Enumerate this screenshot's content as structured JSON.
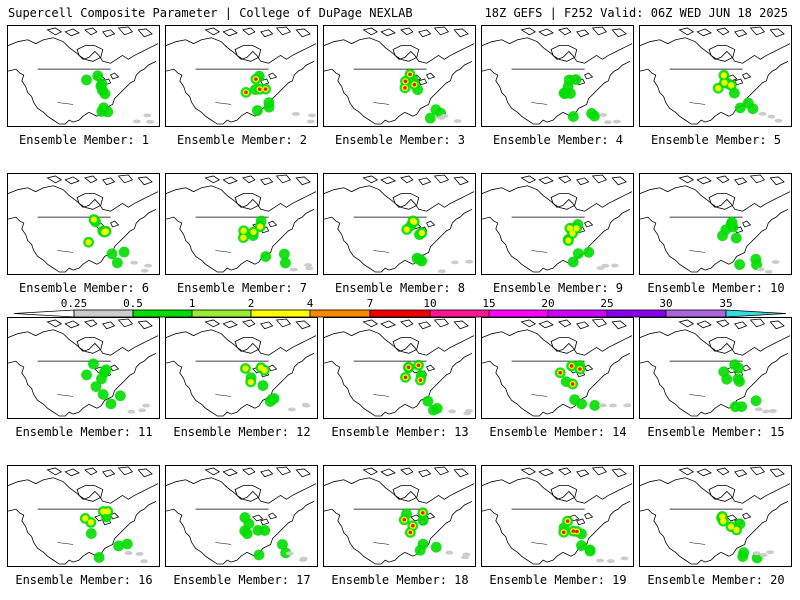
{
  "header": {
    "title_left": "Supercell Composite Parameter | College of DuPage NEXLAB",
    "title_right": "18Z GEFS | F252 Valid: 06Z WED JUN 18 2025"
  },
  "members": [
    {
      "label": "Ensemble Member: 1",
      "intensity": 1
    },
    {
      "label": "Ensemble Member: 2",
      "intensity": 3
    },
    {
      "label": "Ensemble Member: 3",
      "intensity": 3
    },
    {
      "label": "Ensemble Member: 4",
      "intensity": 1
    },
    {
      "label": "Ensemble Member: 5",
      "intensity": 2
    },
    {
      "label": "Ensemble Member: 6",
      "intensity": 2
    },
    {
      "label": "Ensemble Member: 7",
      "intensity": 2
    },
    {
      "label": "Ensemble Member: 8",
      "intensity": 2
    },
    {
      "label": "Ensemble Member: 9",
      "intensity": 2
    },
    {
      "label": "Ensemble Member: 10",
      "intensity": 1
    },
    {
      "label": "Ensemble Member: 11",
      "intensity": 1
    },
    {
      "label": "Ensemble Member: 12",
      "intensity": 2
    },
    {
      "label": "Ensemble Member: 13",
      "intensity": 3
    },
    {
      "label": "Ensemble Member: 14",
      "intensity": 3
    },
    {
      "label": "Ensemble Member: 15",
      "intensity": 1
    },
    {
      "label": "Ensemble Member: 16",
      "intensity": 2
    },
    {
      "label": "Ensemble Member: 17",
      "intensity": 1
    },
    {
      "label": "Ensemble Member: 18",
      "intensity": 3
    },
    {
      "label": "Ensemble Member: 19",
      "intensity": 3
    },
    {
      "label": "Ensemble Member: 20",
      "intensity": 2
    }
  ],
  "colorbar": {
    "tick_labels": [
      "0.25",
      "0.5",
      "1",
      "2",
      "4",
      "7",
      "10",
      "15",
      "20",
      "25",
      "30",
      "35"
    ],
    "colors": [
      "#ffffff",
      "#cccccc",
      "#00dd00",
      "#99ee33",
      "#ffff00",
      "#ff8800",
      "#ee0000",
      "#ff1493",
      "#ff00ff",
      "#cc00ff",
      "#8800ee",
      "#aa66dd",
      "#33dddd"
    ]
  }
}
